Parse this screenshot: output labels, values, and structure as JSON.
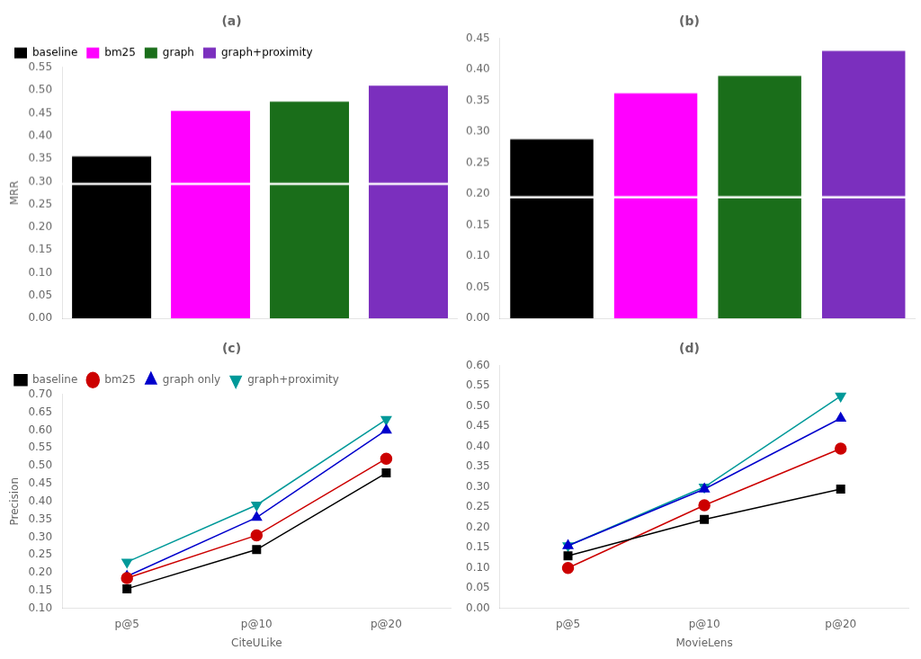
{
  "chart_data": [
    {
      "type": "bar",
      "title": "(a)",
      "categories": [
        "baseline",
        "bm25",
        "graph",
        "graph+proximity"
      ],
      "values": [
        0.355,
        0.455,
        0.475,
        0.51
      ],
      "colors": [
        "#000000",
        "#ff00ff",
        "#1a6e1a",
        "#7b2fbe"
      ],
      "ylabel": "MRR",
      "ylim": [
        0.0,
        0.55
      ],
      "yticks": [
        {
          "value": 0.0,
          "label": "0.00"
        },
        0.05,
        {
          "value": 0.1,
          "label": "0.10"
        },
        0.15,
        {
          "value": 0.2,
          "label": "0.20"
        },
        0.25,
        {
          "value": 0.3,
          "label": "0.30"
        },
        0.35,
        {
          "value": 0.4,
          "label": "0.40"
        },
        0.45,
        {
          "value": 0.5,
          "label": "0.50"
        },
        0.55
      ],
      "break_y": 0.295,
      "legend": "upper left",
      "tick_labels": "y",
      "grid": false
    },
    {
      "type": "bar",
      "title": "(b)",
      "categories": [
        null,
        null,
        null,
        null
      ],
      "values": [
        0.288,
        0.362,
        0.39,
        0.43
      ],
      "colors": [
        "#000000",
        "#ff00ff",
        "#1a6e1a",
        "#7b2fbe"
      ],
      "ylim": [
        0.0,
        0.45
      ],
      "yticks": [
        {
          "value": 0.0,
          "label": "0.00"
        },
        0.05,
        {
          "value": 0.1,
          "label": "0.10"
        },
        0.15,
        {
          "value": 0.2,
          "label": "0.20"
        },
        0.25,
        {
          "value": 0.3,
          "label": "0.30"
        },
        0.35,
        {
          "value": 0.4,
          "label": "0.40"
        },
        0.45
      ],
      "break_y": 0.195,
      "tick_labels": "y",
      "grid": false
    },
    {
      "type": "line",
      "title": "(c)",
      "categories": [
        "p@5",
        "p@10",
        "p@20"
      ],
      "series": [
        {
          "name": "baseline",
          "color": "#000000",
          "marker": "square",
          "values": [
            0.155,
            0.265,
            0.48
          ]
        },
        {
          "name": "bm25",
          "color": "#cc0000",
          "marker": "circle",
          "values": [
            0.185,
            0.305,
            0.52
          ]
        },
        {
          "name": "graph only",
          "color": "#0000cc",
          "marker": "triangle",
          "values": [
            0.19,
            0.355,
            0.6
          ]
        },
        {
          "name": "graph+proximity",
          "color": "#009999",
          "marker": "triangle_down",
          "values": [
            0.23,
            0.39,
            0.63
          ]
        }
      ],
      "xlabel": "CiteULike",
      "ylabel": "Precision",
      "ylim": [
        0.1,
        0.7
      ],
      "yticks": [
        {
          "value": 0.1,
          "label": "0.10"
        },
        0.15,
        {
          "value": 0.2,
          "label": "0.20"
        },
        0.25,
        {
          "value": 0.3,
          "label": "0.30"
        },
        0.35,
        {
          "value": 0.4,
          "label": "0.40"
        },
        0.45,
        {
          "value": 0.5,
          "label": "0.50"
        },
        0.55,
        {
          "value": 0.6,
          "label": "0.60"
        },
        0.65,
        {
          "value": 0.7,
          "label": "0.70"
        }
      ],
      "legend": "upper left",
      "grid": false
    },
    {
      "type": "line",
      "title": "(d)",
      "categories": [
        "p@5",
        "p@10",
        "p@20"
      ],
      "series": [
        {
          "name": "baseline",
          "color": "#000000",
          "marker": "square",
          "values": [
            0.13,
            0.22,
            0.295
          ]
        },
        {
          "name": "bm25",
          "color": "#cc0000",
          "marker": "circle",
          "values": [
            0.1,
            0.255,
            0.395
          ]
        },
        {
          "name": "graph only",
          "color": "#0000cc",
          "marker": "triangle",
          "values": [
            0.155,
            0.295,
            0.47
          ]
        },
        {
          "name": "graph+proximity",
          "color": "#009999",
          "marker": "triangle_down",
          "values": [
            0.155,
            0.3,
            0.525
          ]
        }
      ],
      "xlabel": "MovieLens",
      "ylim": [
        0.0,
        0.6
      ],
      "yticks": [
        {
          "value": 0.0,
          "label": "0.00"
        },
        0.05,
        {
          "value": 0.1,
          "label": "0.10"
        },
        0.15,
        {
          "value": 0.2,
          "label": "0.20"
        },
        0.25,
        {
          "value": 0.3,
          "label": "0.30"
        },
        0.35,
        {
          "value": 0.4,
          "label": "0.40"
        },
        0.45,
        {
          "value": 0.5,
          "label": "0.50"
        },
        0.55,
        {
          "value": 0.6,
          "label": "0.60"
        }
      ],
      "grid": false
    }
  ]
}
